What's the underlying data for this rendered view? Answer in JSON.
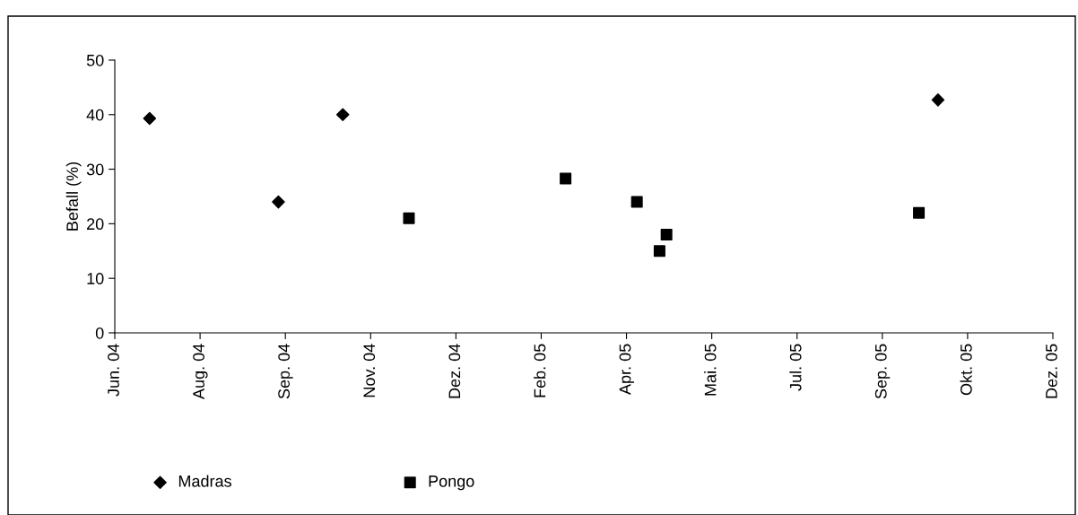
{
  "chart_data": {
    "type": "scatter",
    "ylabel": "Befall (%)",
    "legend": "bottom",
    "grid": false,
    "xlim": [
      "2004-06-17",
      "2005-12-08"
    ],
    "xticks": [
      {
        "value": "2004-06-17",
        "label": "Jun. 04"
      },
      {
        "value": "2004-08-05",
        "label": "Aug. 04"
      },
      {
        "value": "2004-09-23",
        "label": "Sep. 04"
      },
      {
        "value": "2004-11-11",
        "label": "Nov. 04"
      },
      {
        "value": "2004-12-30",
        "label": "Dez. 04"
      },
      {
        "value": "2005-02-17",
        "label": "Feb. 05"
      },
      {
        "value": "2005-04-07",
        "label": "Apr. 05"
      },
      {
        "value": "2005-05-26",
        "label": "Mai. 05"
      },
      {
        "value": "2005-07-14",
        "label": "Jul. 05"
      },
      {
        "value": "2005-09-01",
        "label": "Sep. 05"
      },
      {
        "value": "2005-10-20",
        "label": "Okt. 05"
      },
      {
        "value": "2005-12-08",
        "label": "Dez. 05"
      }
    ],
    "ylim": [
      0,
      50
    ],
    "yticks": [
      0,
      10,
      20,
      30,
      40,
      50
    ],
    "series": [
      {
        "name": "Madras",
        "color": "#000000",
        "marker": "diamond",
        "x": [
          "2004-07-07",
          "2004-09-19",
          "2004-10-26",
          "2005-10-03"
        ],
        "values": [
          39.3,
          24,
          40,
          42.7
        ]
      },
      {
        "name": "Pongo",
        "color": "#000000",
        "marker": "square",
        "x": [
          "2004-12-03",
          "2005-03-03",
          "2005-04-13",
          "2005-04-26",
          "2005-04-30",
          "2005-09-22"
        ],
        "values": [
          21,
          28.3,
          24,
          15,
          18,
          22
        ]
      }
    ]
  }
}
